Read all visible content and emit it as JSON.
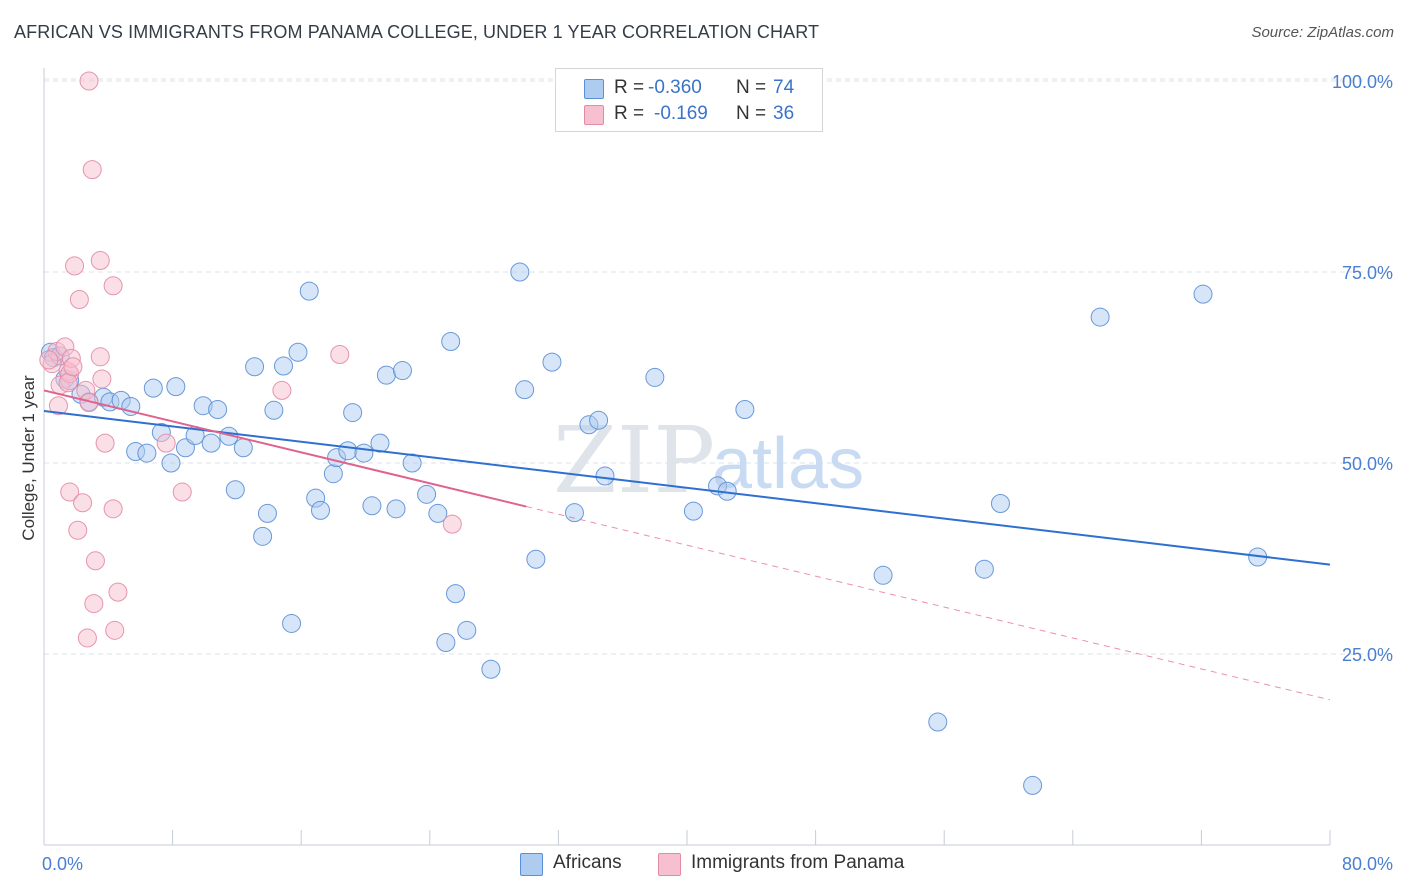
{
  "title": "AFRICAN VS IMMIGRANTS FROM PANAMA COLLEGE, UNDER 1 YEAR CORRELATION CHART",
  "source": "Source: ZipAtlas.com",
  "watermark": {
    "zip": "ZIP",
    "atlas": "atlas"
  },
  "colors": {
    "blue_fill": "#aecbf0",
    "blue_stroke": "#5b8fd6",
    "blue_line": "#2e6fd0",
    "pink_fill": "#f7c0d0",
    "pink_stroke": "#e38aa6",
    "pink_line": "#e0628e",
    "tick_label": "#4a7fd0",
    "grid": "#dde3ea"
  },
  "legend": {
    "r_label": "R =",
    "n_label": "N =",
    "rows": [
      {
        "series": "Africans",
        "r": "-0.360",
        "n": "74",
        "color": "#aecbf0",
        "border": "#5b8fd6"
      },
      {
        "series": "Immigrants from Panama",
        "r": "-0.169",
        "n": "36",
        "color": "#f7c0d0",
        "border": "#e38aa6"
      }
    ]
  },
  "bottom_legend": [
    "Africans",
    "Immigrants from Panama"
  ],
  "chart_data": {
    "type": "scatter",
    "title": "AFRICAN VS IMMIGRANTS FROM PANAMA COLLEGE, UNDER 1 YEAR CORRELATION CHART",
    "xlabel": "",
    "ylabel": "College, Under 1 year",
    "xlim": [
      0,
      80
    ],
    "ylim": [
      0,
      105
    ],
    "x_tick_labels": [
      "0.0%",
      "80.0%"
    ],
    "y_ticks": [
      25,
      50,
      75,
      100
    ],
    "y_tick_labels": [
      "25.0%",
      "50.0%",
      "75.0%",
      "100.0%"
    ],
    "series": [
      {
        "name": "Africans",
        "r": -0.36,
        "n": 74,
        "trend": {
          "x": [
            0,
            80
          ],
          "y": [
            56.8,
            36.7
          ],
          "dashed_extension": false
        },
        "points": [
          [
            0.4,
            64.5
          ],
          [
            0.6,
            63.8
          ],
          [
            1.0,
            64.0
          ],
          [
            1.3,
            61.0
          ],
          [
            1.6,
            60.8
          ],
          [
            2.3,
            59.0
          ],
          [
            2.8,
            58.0
          ],
          [
            3.7,
            58.6
          ],
          [
            4.1,
            58.0
          ],
          [
            4.8,
            58.2
          ],
          [
            5.4,
            57.4
          ],
          [
            5.7,
            51.5
          ],
          [
            6.4,
            51.3
          ],
          [
            6.8,
            59.8
          ],
          [
            7.3,
            54.0
          ],
          [
            7.9,
            50.0
          ],
          [
            8.2,
            60.0
          ],
          [
            8.8,
            52.0
          ],
          [
            9.4,
            53.6
          ],
          [
            9.9,
            57.5
          ],
          [
            10.4,
            52.6
          ],
          [
            10.8,
            57.0
          ],
          [
            11.5,
            53.5
          ],
          [
            11.9,
            46.5
          ],
          [
            12.4,
            52.0
          ],
          [
            13.1,
            62.6
          ],
          [
            13.6,
            40.4
          ],
          [
            13.9,
            43.4
          ],
          [
            14.3,
            56.9
          ],
          [
            14.9,
            62.7
          ],
          [
            15.4,
            29.0
          ],
          [
            15.8,
            64.5
          ],
          [
            16.5,
            72.5
          ],
          [
            16.9,
            45.4
          ],
          [
            17.2,
            43.8
          ],
          [
            18.0,
            48.6
          ],
          [
            18.2,
            50.7
          ],
          [
            18.9,
            51.6
          ],
          [
            19.2,
            56.6
          ],
          [
            19.9,
            51.3
          ],
          [
            20.4,
            44.4
          ],
          [
            20.9,
            52.6
          ],
          [
            21.3,
            61.5
          ],
          [
            21.9,
            44.0
          ],
          [
            22.3,
            62.1
          ],
          [
            22.9,
            50.0
          ],
          [
            23.8,
            45.9
          ],
          [
            24.5,
            43.4
          ],
          [
            25.0,
            26.5
          ],
          [
            25.3,
            65.9
          ],
          [
            25.6,
            32.9
          ],
          [
            26.3,
            28.1
          ],
          [
            27.8,
            23.0
          ],
          [
            29.6,
            75.0
          ],
          [
            29.9,
            59.6
          ],
          [
            30.6,
            37.4
          ],
          [
            31.6,
            63.2
          ],
          [
            33.0,
            43.5
          ],
          [
            33.9,
            55.0
          ],
          [
            34.5,
            55.6
          ],
          [
            34.9,
            48.3
          ],
          [
            38.0,
            61.2
          ],
          [
            40.4,
            43.7
          ],
          [
            41.9,
            47.0
          ],
          [
            42.5,
            46.3
          ],
          [
            43.6,
            57.0
          ],
          [
            52.2,
            35.3
          ],
          [
            55.6,
            16.1
          ],
          [
            58.5,
            36.1
          ],
          [
            59.5,
            44.7
          ],
          [
            61.5,
            7.8
          ],
          [
            65.7,
            69.1
          ],
          [
            72.1,
            72.1
          ],
          [
            75.5,
            37.7
          ]
        ]
      },
      {
        "name": "Immigrants from Panama",
        "r": -0.169,
        "n": 36,
        "trend": {
          "x": [
            0,
            30
          ],
          "y": [
            59.5,
            44.3
          ],
          "dashed_to": [
            80,
            19.0
          ]
        },
        "points": [
          [
            0.5,
            63.0
          ],
          [
            0.8,
            64.6
          ],
          [
            0.9,
            57.5
          ],
          [
            1.0,
            60.2
          ],
          [
            1.3,
            65.2
          ],
          [
            1.5,
            62.0
          ],
          [
            1.6,
            61.7
          ],
          [
            1.5,
            60.5
          ],
          [
            1.6,
            46.2
          ],
          [
            1.7,
            63.7
          ],
          [
            1.8,
            62.6
          ],
          [
            1.9,
            75.8
          ],
          [
            2.1,
            41.2
          ],
          [
            2.2,
            71.4
          ],
          [
            2.4,
            44.8
          ],
          [
            2.6,
            59.5
          ],
          [
            2.7,
            27.1
          ],
          [
            2.8,
            57.9
          ],
          [
            2.8,
            100.0
          ],
          [
            3.0,
            88.4
          ],
          [
            3.1,
            31.6
          ],
          [
            3.2,
            37.2
          ],
          [
            3.5,
            76.5
          ],
          [
            3.5,
            63.9
          ],
          [
            3.6,
            61.0
          ],
          [
            3.8,
            52.6
          ],
          [
            4.3,
            73.2
          ],
          [
            4.3,
            44.0
          ],
          [
            4.4,
            28.1
          ],
          [
            4.6,
            33.1
          ],
          [
            7.6,
            52.6
          ],
          [
            8.6,
            46.2
          ],
          [
            14.8,
            59.5
          ],
          [
            18.4,
            64.2
          ],
          [
            25.4,
            42.0
          ],
          [
            0.3,
            63.5
          ]
        ]
      }
    ]
  }
}
